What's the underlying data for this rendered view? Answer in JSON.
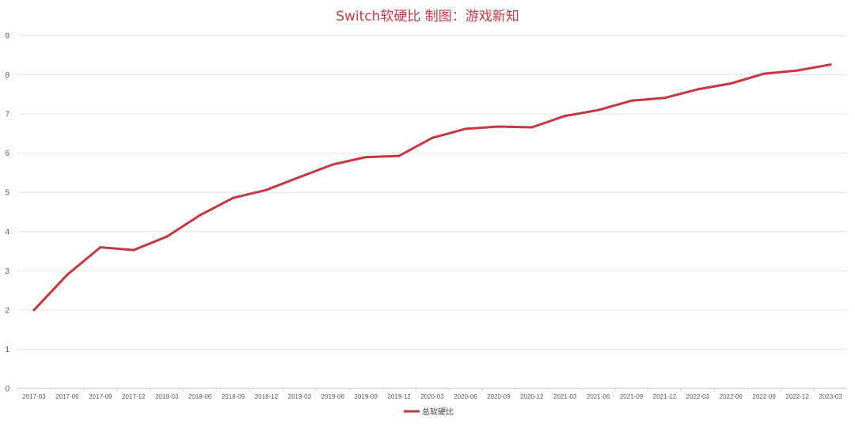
{
  "chart_data": {
    "type": "line",
    "title": "Switch软硬比 制图：游戏新知",
    "title_color": "#d13440",
    "xlabel": "",
    "ylabel": "",
    "ylim": [
      0,
      9
    ],
    "yticks": [
      "0",
      "1",
      "2",
      "3",
      "4",
      "5",
      "6",
      "7",
      "8",
      "9"
    ],
    "grid": true,
    "legend_position": "bottom",
    "categories": [
      "2017-03",
      "2017-06",
      "2017-09",
      "2017-12",
      "2018-03",
      "2018-06",
      "2018-09",
      "2018-12",
      "2019-03",
      "2019-06",
      "2019-09",
      "2019-12",
      "2020-03",
      "2020-06",
      "2020-09",
      "2020-12",
      "2021-03",
      "2021-06",
      "2021-09",
      "2021-12",
      "2022-03",
      "2022-06",
      "2022-09",
      "2022-12",
      "2023-03"
    ],
    "series": [
      {
        "name": "总软硬比",
        "color": "#c8363f",
        "values": [
          2.0,
          2.9,
          3.6,
          3.53,
          3.87,
          4.42,
          4.86,
          5.06,
          5.39,
          5.71,
          5.9,
          5.93,
          6.39,
          6.62,
          6.68,
          6.66,
          6.95,
          7.1,
          7.34,
          7.41,
          7.63,
          7.78,
          8.03,
          8.11,
          8.26
        ]
      }
    ]
  }
}
